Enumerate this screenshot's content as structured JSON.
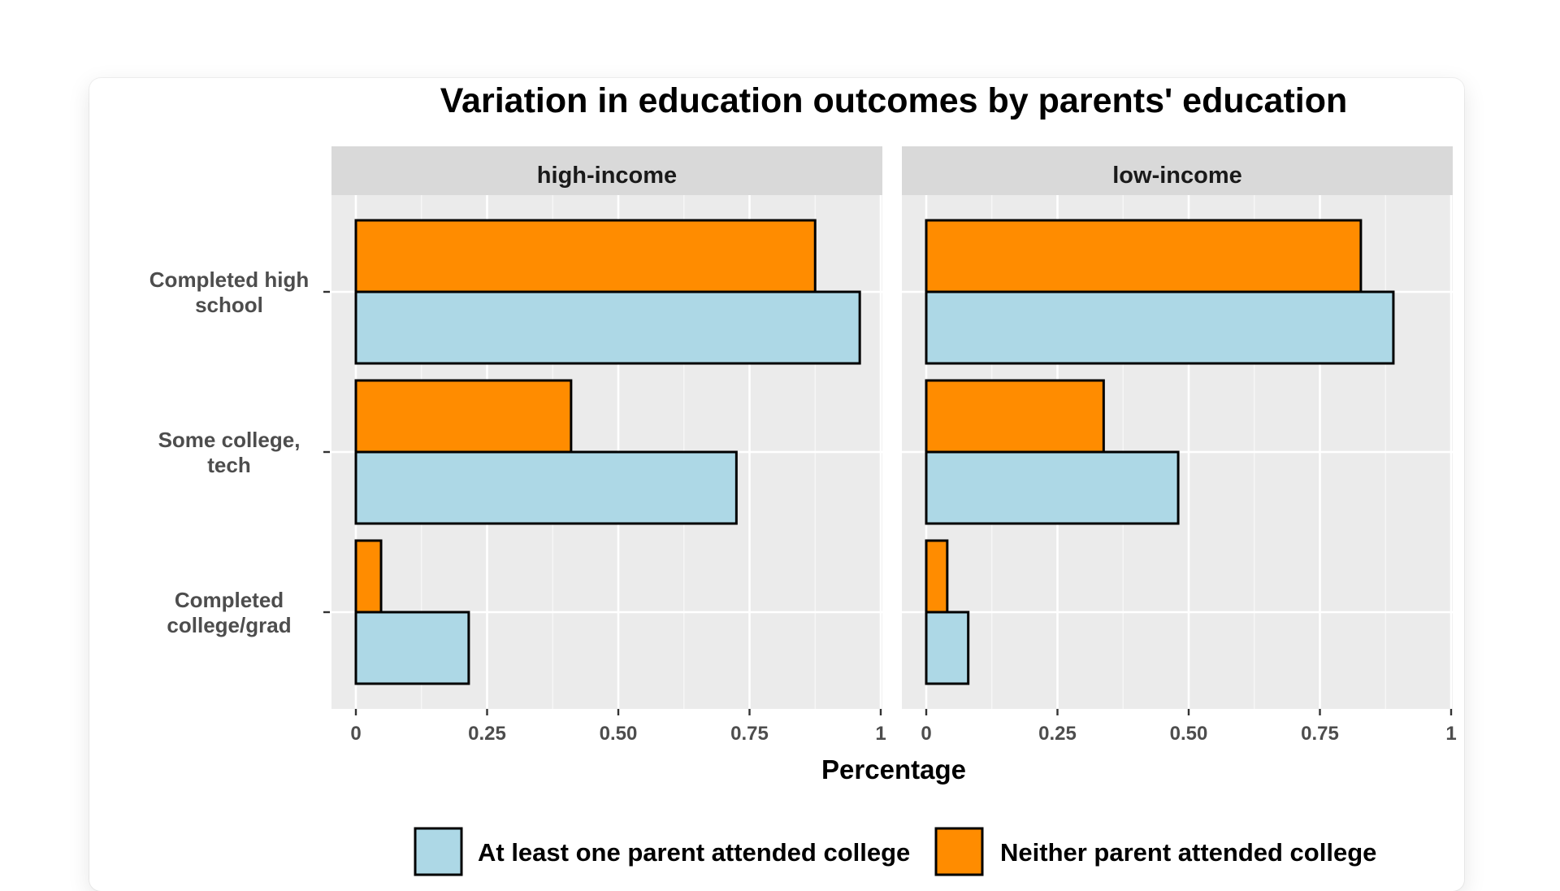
{
  "chart_data": {
    "type": "bar",
    "orientation": "horizontal",
    "title": "Variation in education outcomes by parents' education",
    "xlabel": "Percentage",
    "ylabel": "",
    "xlim": [
      0,
      1
    ],
    "x_ticks": [
      0,
      0.25,
      0.5,
      0.75,
      1
    ],
    "x_tick_labels": [
      "0",
      "0.25",
      "0.50",
      "0.75",
      "1"
    ],
    "categories": [
      "Completed high school",
      "Some college, tech",
      "Completed college/grad"
    ],
    "category_label_lines": [
      [
        "Completed high",
        "school"
      ],
      [
        "Some college,",
        "tech"
      ],
      [
        "Completed",
        "college/grad"
      ]
    ],
    "facets": [
      {
        "name": "high-income",
        "series": [
          {
            "name": "Neither parent attended college",
            "values": [
              0.875,
              0.41,
              0.048
            ]
          },
          {
            "name": "At least one parent attended college",
            "values": [
              0.96,
              0.725,
              0.215
            ]
          }
        ]
      },
      {
        "name": "low-income",
        "series": [
          {
            "name": "Neither parent attended college",
            "values": [
              0.828,
              0.338,
              0.04
            ]
          },
          {
            "name": "At least one parent attended college",
            "values": [
              0.89,
              0.48,
              0.08
            ]
          }
        ]
      }
    ],
    "legend": {
      "position": "bottom",
      "entries": [
        {
          "label": "At least one parent attended college",
          "color": "#add8e6"
        },
        {
          "label": "Neither parent attended college",
          "color": "#ff8c00"
        }
      ]
    },
    "colors": {
      "Neither parent attended college": "#ff8c00",
      "At least one parent attended college": "#add8e6"
    },
    "grid": true
  }
}
